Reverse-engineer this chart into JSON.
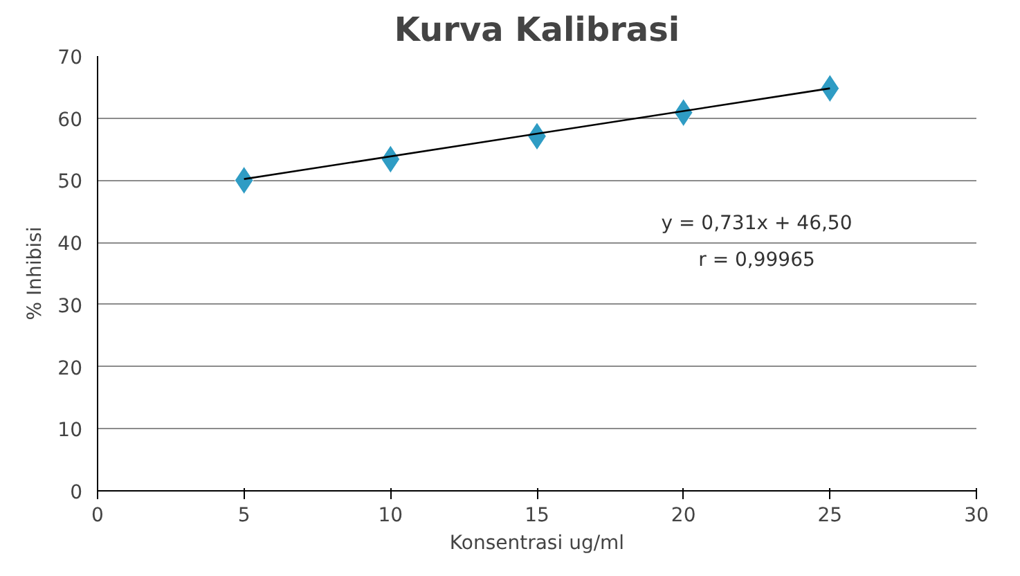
{
  "chart_data": {
    "type": "scatter",
    "title": "Kurva Kalibrasi",
    "xlabel": "Konsentrasi ug/ml",
    "ylabel": "% Inhibisi",
    "xlim": [
      0,
      30
    ],
    "xticks": [
      0,
      5,
      10,
      15,
      20,
      25,
      30
    ],
    "ylim": [
      0,
      70
    ],
    "yticks": [
      0,
      10,
      20,
      30,
      40,
      50,
      60,
      70
    ],
    "grid": "y",
    "series": [
      {
        "type": "scatter",
        "marker": "diamond",
        "color": "#2f9cc4",
        "x": [
          5,
          10,
          15,
          20,
          25
        ],
        "values": [
          50.0,
          53.4,
          57.1,
          60.9,
          64.8
        ]
      },
      {
        "type": "line",
        "color": "#000000",
        "x": [
          5,
          25
        ],
        "values": [
          50.2,
          64.8
        ]
      }
    ],
    "annotations": [
      "y = 0,731x + 46,50",
      "r = 0,99965"
    ]
  }
}
